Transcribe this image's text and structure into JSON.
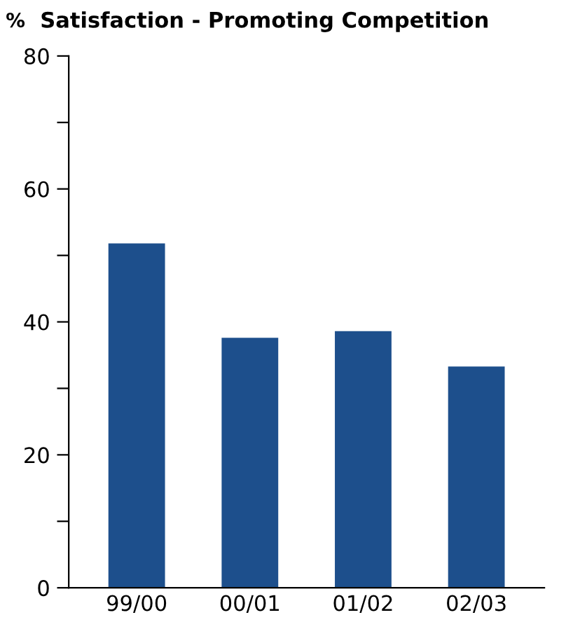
{
  "chart_data": {
    "type": "bar",
    "title": "Satisfaction - Promoting Competition",
    "ylabel": "%",
    "categories": [
      "99/00",
      "00/01",
      "01/02",
      "02/03"
    ],
    "values": [
      51.8,
      37.6,
      38.6,
      33.3
    ],
    "color": "#1d4f8c",
    "ylim": [
      0,
      80
    ],
    "yticks": [
      0,
      {
        "value": 10,
        "label": null
      },
      20,
      {
        "value": 30,
        "label": null
      },
      40,
      {
        "value": 50,
        "label": null
      },
      60,
      {
        "value": 70,
        "label": null
      },
      80
    ],
    "grid": false,
    "legend": false
  }
}
